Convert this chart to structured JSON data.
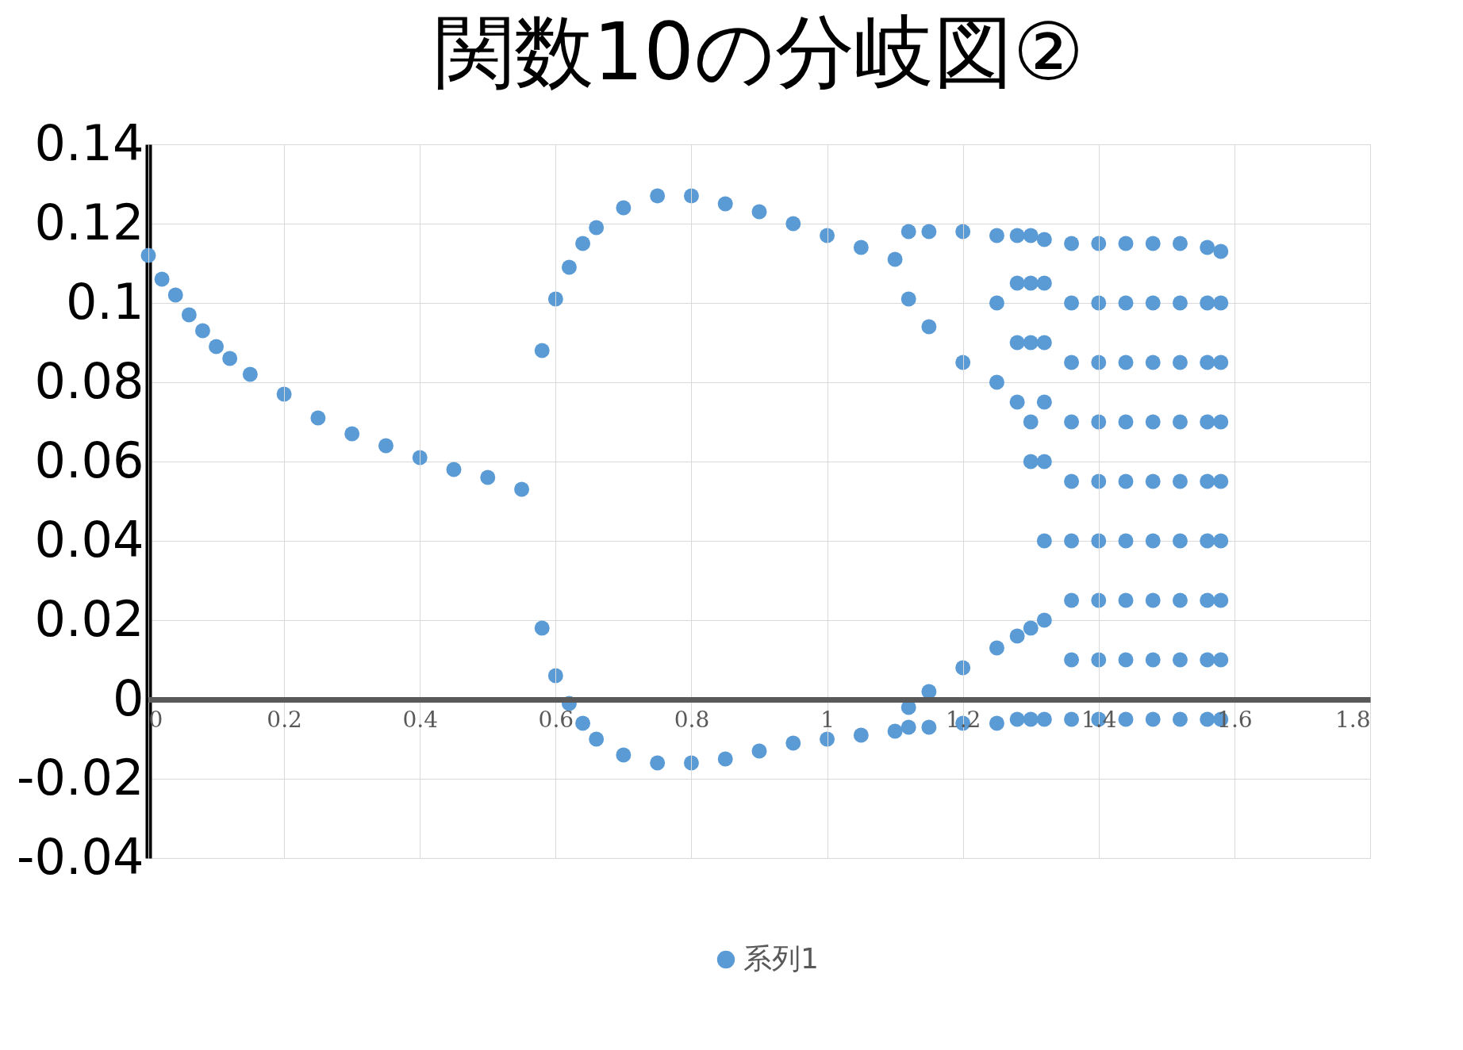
{
  "chart_data": {
    "type": "scatter",
    "title": "関数10の分岐図②",
    "legend": "bottom",
    "grid": true,
    "marker": "circle",
    "xlim": [
      0,
      1.8
    ],
    "xticks": [
      0,
      0.2,
      0.4,
      0.6,
      0.8,
      1,
      1.2,
      1.4,
      1.6,
      1.8
    ],
    "ylim": [
      -0.04,
      0.14
    ],
    "yticks": [
      -0.04,
      -0.02,
      0,
      0.02,
      0.04,
      0.06,
      0.08,
      0.1,
      0.12,
      0.14
    ],
    "series": [
      {
        "name": "系列1",
        "color": "#5b9bd5",
        "x": [
          0,
          0.02,
          0.04,
          0.06,
          0.08,
          0.1,
          0.12,
          0.15,
          0.2,
          0.25,
          0.3,
          0.35,
          0.4,
          0.45,
          0.5,
          0.55,
          0.58,
          0.58,
          0.6,
          0.6,
          0.62,
          0.62,
          0.64,
          0.64,
          0.66,
          0.66,
          0.7,
          0.7,
          0.75,
          0.75,
          0.8,
          0.8,
          0.85,
          0.85,
          0.9,
          0.9,
          0.95,
          0.95,
          1.0,
          1.0,
          1.05,
          1.05,
          1.1,
          1.1,
          1.12,
          1.12,
          1.12,
          1.12,
          1.15,
          1.15,
          1.15,
          1.15,
          1.2,
          1.2,
          1.2,
          1.2,
          1.25,
          1.25,
          1.25,
          1.25,
          1.25,
          1.28,
          1.28,
          1.28,
          1.28,
          1.28,
          1.28,
          1.3,
          1.3,
          1.3,
          1.3,
          1.3,
          1.3,
          1.3,
          1.32,
          1.32,
          1.32,
          1.32,
          1.32,
          1.32,
          1.32,
          1.32,
          1.36,
          1.36,
          1.36,
          1.36,
          1.36,
          1.36,
          1.36,
          1.36,
          1.36,
          1.4,
          1.4,
          1.4,
          1.4,
          1.4,
          1.4,
          1.4,
          1.4,
          1.4,
          1.44,
          1.44,
          1.44,
          1.44,
          1.44,
          1.44,
          1.44,
          1.44,
          1.44,
          1.48,
          1.48,
          1.48,
          1.48,
          1.48,
          1.48,
          1.48,
          1.48,
          1.48,
          1.52,
          1.52,
          1.52,
          1.52,
          1.52,
          1.52,
          1.52,
          1.52,
          1.52,
          1.56,
          1.56,
          1.56,
          1.56,
          1.56,
          1.56,
          1.56,
          1.56,
          1.56,
          1.58,
          1.58,
          1.58,
          1.58,
          1.58,
          1.58,
          1.58,
          1.58,
          1.58
        ],
        "values": [
          0.112,
          0.106,
          0.102,
          0.097,
          0.093,
          0.089,
          0.086,
          0.082,
          0.077,
          0.071,
          0.067,
          0.064,
          0.061,
          0.058,
          0.056,
          0.053,
          0.088,
          0.018,
          0.101,
          0.006,
          0.109,
          -0.001,
          0.115,
          -0.006,
          0.119,
          -0.01,
          0.124,
          -0.014,
          0.127,
          -0.016,
          0.127,
          -0.016,
          0.125,
          -0.015,
          0.123,
          -0.013,
          0.12,
          -0.011,
          0.117,
          -0.01,
          0.114,
          -0.009,
          0.111,
          -0.008,
          0.118,
          0.101,
          -0.007,
          -0.002,
          0.118,
          0.094,
          -0.007,
          0.002,
          0.118,
          0.085,
          -0.006,
          0.008,
          0.117,
          0.1,
          0.08,
          -0.006,
          0.013,
          0.117,
          0.105,
          0.09,
          0.075,
          -0.005,
          0.016,
          0.117,
          0.105,
          0.09,
          0.07,
          0.06,
          -0.005,
          0.018,
          0.116,
          0.105,
          0.09,
          0.075,
          0.06,
          0.04,
          0.02,
          -0.005,
          0.115,
          0.1,
          0.085,
          0.07,
          0.055,
          0.04,
          0.025,
          0.01,
          -0.005,
          0.115,
          0.1,
          0.085,
          0.07,
          0.055,
          0.04,
          0.025,
          0.01,
          -0.005,
          0.115,
          0.1,
          0.085,
          0.07,
          0.055,
          0.04,
          0.025,
          0.01,
          -0.005,
          0.115,
          0.1,
          0.085,
          0.07,
          0.055,
          0.04,
          0.025,
          0.01,
          -0.005,
          0.115,
          0.1,
          0.085,
          0.07,
          0.055,
          0.04,
          0.025,
          0.01,
          -0.005,
          0.114,
          0.1,
          0.085,
          0.07,
          0.055,
          0.04,
          0.025,
          0.01,
          -0.005,
          0.113,
          0.1,
          0.085,
          0.07,
          0.055,
          0.04,
          0.025,
          0.01,
          -0.005
        ]
      }
    ]
  }
}
